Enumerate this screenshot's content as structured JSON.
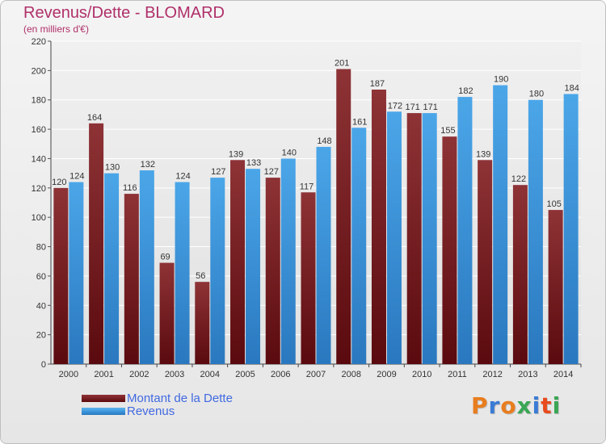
{
  "title": "Revenus/Dette - BLOMARD",
  "subtitle": "(en milliers d'€)",
  "logo": {
    "text": "Proxiti",
    "letter_colors": [
      "#e87d1e",
      "#3a7bd5",
      "#e87d1e",
      "#3aa655",
      "#3a7bd5",
      "#e84b1e",
      "#3aa655"
    ]
  },
  "colors": {
    "dette": "#7a1f24",
    "revenus": "#3d97dc",
    "title": "#b0306a",
    "legend_text": "#4169e1"
  },
  "chart_data": {
    "type": "bar",
    "title": "Revenus/Dette - BLOMARD",
    "subtitle": "(en milliers d'€)",
    "categories": [
      "2000",
      "2001",
      "2002",
      "2003",
      "2004",
      "2005",
      "2006",
      "2007",
      "2008",
      "2009",
      "2010",
      "2011",
      "2012",
      "2013",
      "2014"
    ],
    "series": [
      {
        "name": "Montant de la Dette",
        "values": [
          120,
          164,
          116,
          69,
          56,
          139,
          127,
          117,
          201,
          187,
          171,
          155,
          139,
          122,
          105
        ]
      },
      {
        "name": "Revenus",
        "values": [
          124,
          130,
          132,
          124,
          127,
          133,
          140,
          148,
          161,
          172,
          171,
          182,
          190,
          180,
          184
        ]
      }
    ],
    "ylim": [
      0,
      220
    ],
    "yticks": [
      0,
      20,
      40,
      60,
      80,
      100,
      120,
      140,
      160,
      180,
      200,
      220
    ],
    "grid": true,
    "legend_position": "bottom-left",
    "data_labels": true
  }
}
